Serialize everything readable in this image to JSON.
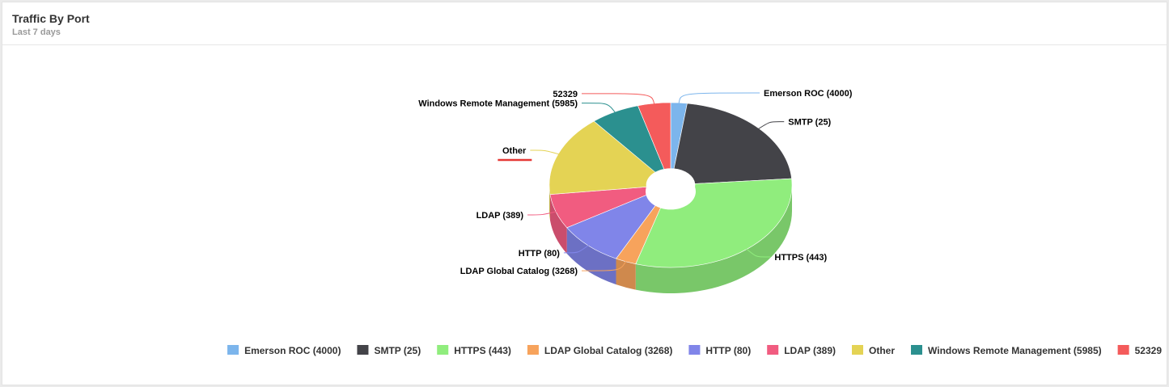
{
  "widget": {
    "title": "Traffic By Port",
    "subtitle": "Last 7 days"
  },
  "chart_data": {
    "type": "pie",
    "variant": "3d-donut",
    "legend_placement": "bottom",
    "categories": [
      "Emerson ROC (4000)",
      "SMTP (25)",
      "HTTPS (443)",
      "LDAP Global Catalog (3268)",
      "HTTP (80)",
      "LDAP (389)",
      "Other",
      "Windows Remote Management (5985)",
      "52329"
    ],
    "values": [
      2.2,
      21.8,
      31.2,
      2.8,
      9.0,
      6.9,
      16.1,
      6.6,
      4.4
    ],
    "colors": [
      "#7cb5ec",
      "#434348",
      "#90ed7d",
      "#f7a35c",
      "#8085e9",
      "#f15c80",
      "#e4d354",
      "#2b908f",
      "#f45b5b"
    ],
    "selected": "Other"
  }
}
